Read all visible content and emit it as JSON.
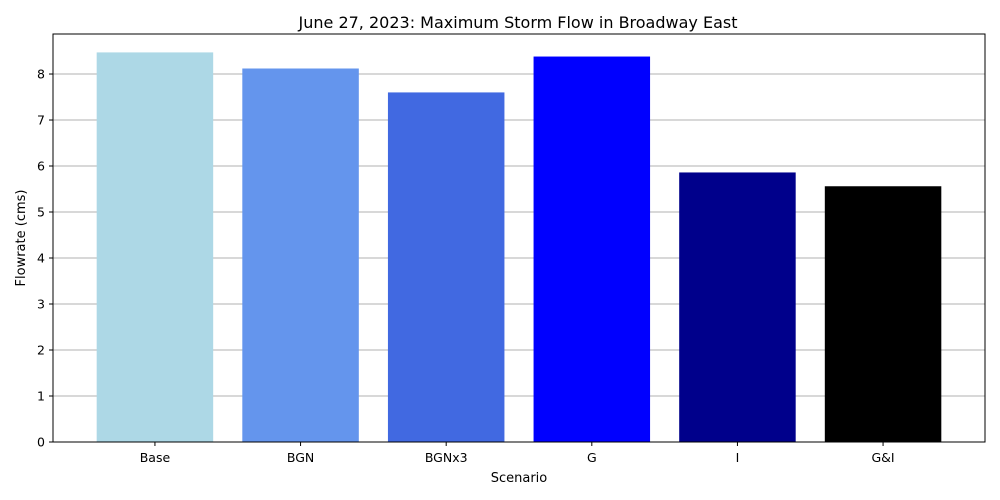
{
  "chart_data": {
    "type": "bar",
    "title": "June 27, 2023: Maximum Storm Flow in Broadway East",
    "xlabel": "Scenario",
    "ylabel": "Flowrate (cms)",
    "categories": [
      "Base",
      "BGN",
      "BGNx3",
      "G",
      "I",
      "G&I"
    ],
    "values": [
      8.47,
      8.12,
      7.6,
      8.38,
      5.86,
      5.56
    ],
    "colors": [
      "#add8e6",
      "#6495ed",
      "#4169e1",
      "#0000ff",
      "#00008b",
      "#000000"
    ],
    "ylim": [
      0,
      8.87
    ],
    "yticks": [
      0,
      1,
      2,
      3,
      4,
      5,
      6,
      7,
      8
    ],
    "grid": "y"
  }
}
